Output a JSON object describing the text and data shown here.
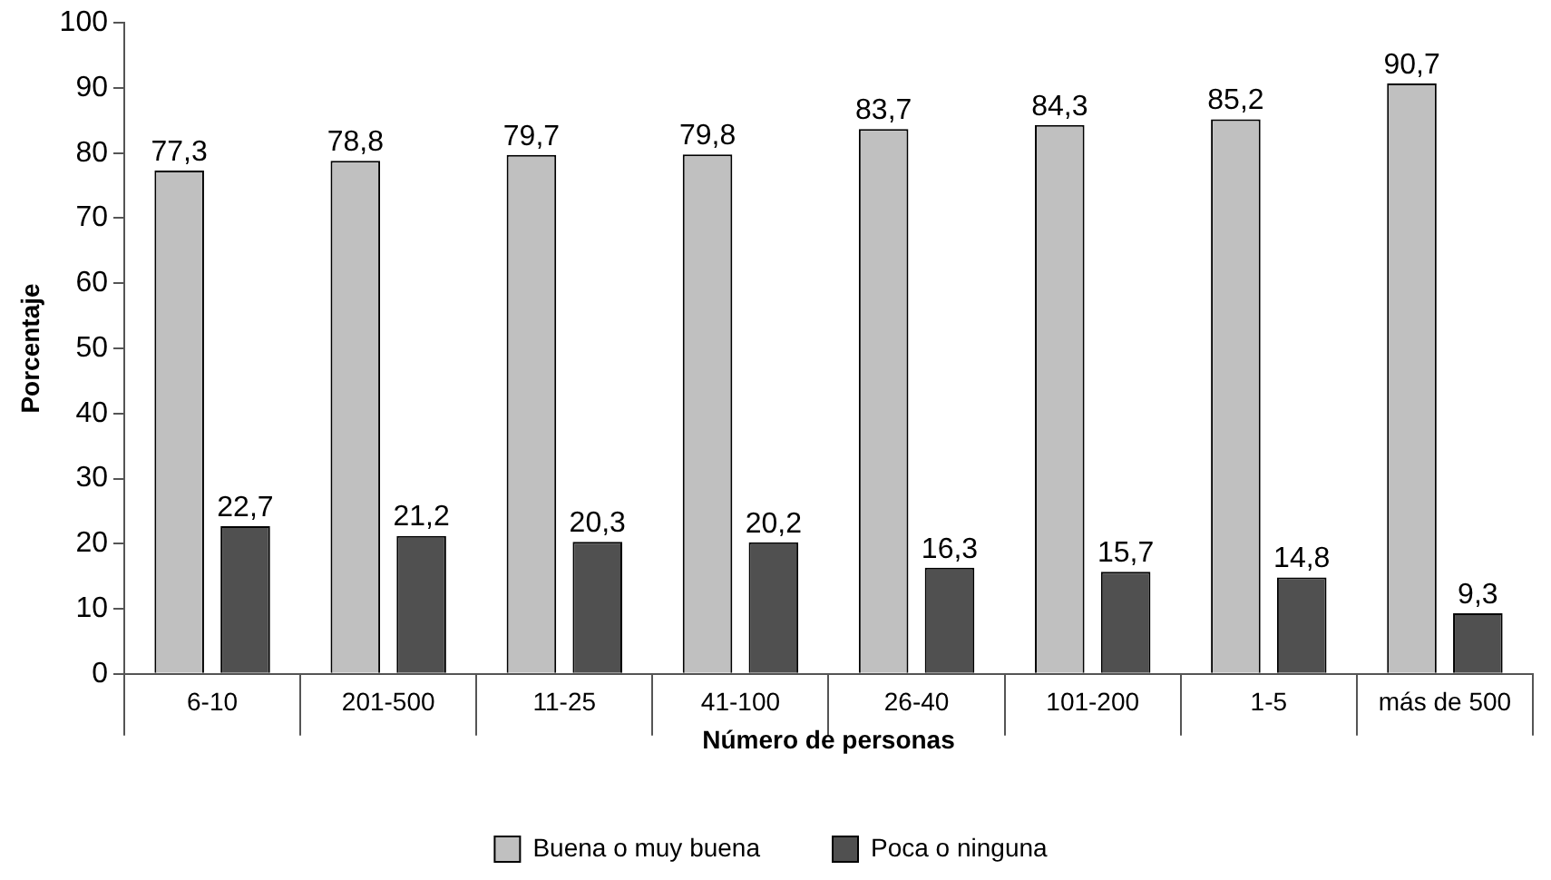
{
  "chart_data": {
    "type": "bar",
    "xlabel": "Número de personas",
    "ylabel": "Porcentaje",
    "categories": [
      "6-10",
      "201-500",
      "11-25",
      "41-100",
      "26-40",
      "101-200",
      "1-5",
      "más de 500"
    ],
    "series": [
      {
        "name": "Buena o muy buena",
        "color": "#c0c0c0",
        "values": [
          77.3,
          78.8,
          79.7,
          79.8,
          83.7,
          84.3,
          85.2,
          90.7
        ],
        "value_labels": [
          "77,3",
          "78,8",
          "79,7",
          "79,8",
          "83,7",
          "84,3",
          "85,2",
          "90,7"
        ]
      },
      {
        "name": "Poca o ninguna",
        "color": "#505050",
        "values": [
          22.7,
          21.2,
          20.3,
          20.2,
          16.3,
          15.7,
          14.8,
          9.3
        ],
        "value_labels": [
          "22,7",
          "21,2",
          "20,3",
          "20,2",
          "16,3",
          "15,7",
          "14,8",
          "9,3"
        ]
      }
    ],
    "ylim": [
      0,
      100
    ],
    "yticks": [
      0,
      10,
      20,
      30,
      40,
      50,
      60,
      70,
      80,
      90,
      100
    ],
    "grid": false,
    "legend": "bottom"
  }
}
